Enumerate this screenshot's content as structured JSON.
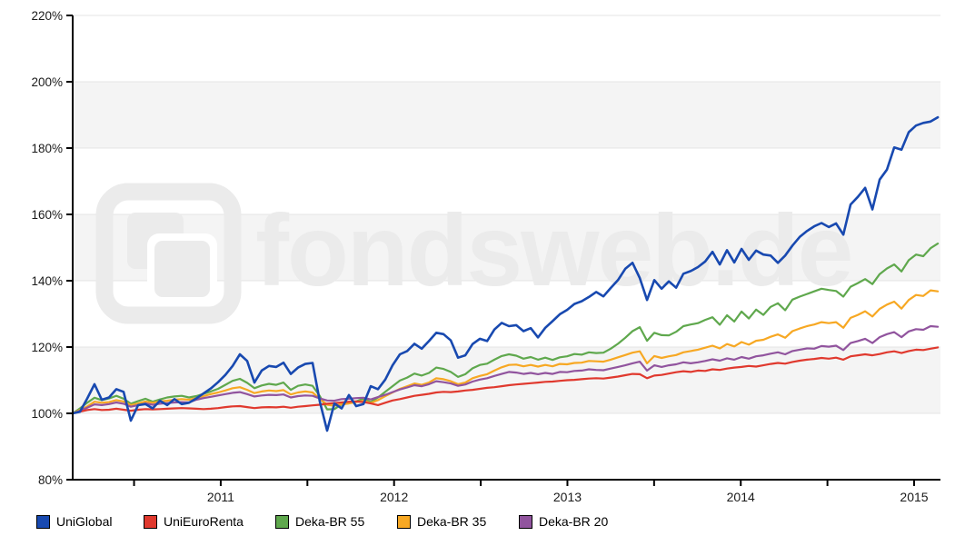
{
  "watermark": {
    "text": "fondsweb.de"
  },
  "style": {
    "background": "#ffffff",
    "band_color": "#f4f4f4",
    "grid_color": "#e4e4e4",
    "axis_color": "#000000",
    "label_color": "#1a1a1a",
    "watermark_color": "#ebebeb"
  },
  "chart_data": {
    "type": "line",
    "title": "",
    "xlabel": "",
    "ylabel": "",
    "y_axis": {
      "unit": "%",
      "min": 80,
      "max": 220,
      "ticks": [
        220,
        200,
        180,
        160,
        140,
        120,
        100,
        80
      ]
    },
    "x_axis": {
      "min": 2010.146,
      "max": 2015.152,
      "ticks": [
        2011,
        2012,
        2013,
        2014,
        2015
      ],
      "minor_ticks": [
        2010.5,
        2011.5,
        2012.5,
        2013.5,
        2014.5
      ]
    },
    "grid": true,
    "legend_position": "bottom",
    "sample_start_year": 2010.146,
    "sample_step_years": 0.041941,
    "series": [
      {
        "name": "UniGlobal",
        "color": "#1849b0",
        "values": [
          100,
          100.5,
          104.5,
          108.8,
          104.1,
          104.8,
          107.3,
          106.5,
          97.8,
          102.5,
          102.8,
          101.5,
          103.8,
          102.5,
          104.3,
          102.8,
          103.2,
          104.5,
          106,
          107.5,
          109.4,
          111.6,
          114.3,
          117.8,
          115.8,
          109.3,
          112.9,
          114.3,
          114,
          115.3,
          111.9,
          113.8,
          114.9,
          115.2,
          103.5,
          94.8,
          103,
          101.5,
          105.5,
          102.2,
          102.8,
          108.2,
          107.3,
          110.2,
          114.5,
          117.8,
          118.8,
          121,
          119.5,
          121.8,
          124.3,
          123.9,
          122,
          116.8,
          117.5,
          120.9,
          122.5,
          121.8,
          125.3,
          127.3,
          126.3,
          126.6,
          124.8,
          125.7,
          122.9,
          125.8,
          127.8,
          129.9,
          131.2,
          133,
          133.8,
          135.1,
          136.6,
          135.3,
          137.8,
          140.2,
          143.6,
          145.4,
          140.8,
          134.2,
          140.2,
          137.6,
          139.8,
          137.9,
          142.1,
          142.9,
          144.1,
          145.8,
          148.7,
          144.9,
          149.2,
          145.5,
          149.6,
          146.3,
          149.1,
          147.9,
          147.6,
          145.4,
          147.6,
          150.6,
          153.2,
          155,
          156.4,
          157.4,
          156.2,
          157.3,
          153.9,
          163,
          165.3,
          168,
          161.5,
          170.5,
          173.5,
          180.2,
          179.5,
          184.8,
          186.8,
          187.6,
          188,
          189.3
        ]
      },
      {
        "name": "UniEuroRenta",
        "color": "#e0392e",
        "values": [
          100,
          100.5,
          101,
          101.3,
          101,
          101.1,
          101.4,
          101.1,
          100.8,
          101.1,
          101.3,
          101.2,
          101.3,
          101.4,
          101.5,
          101.6,
          101.5,
          101.4,
          101.3,
          101.4,
          101.6,
          101.9,
          102.1,
          102.2,
          101.9,
          101.6,
          101.8,
          101.9,
          101.8,
          102,
          101.7,
          102,
          102.2,
          102.4,
          102.6,
          102.9,
          103.1,
          103.3,
          103.5,
          103.6,
          103.4,
          103,
          102.5,
          103.2,
          103.9,
          104.3,
          104.8,
          105.3,
          105.6,
          105.9,
          106.3,
          106.5,
          106.4,
          106.6,
          106.9,
          107.1,
          107.4,
          107.7,
          107.9,
          108.2,
          108.5,
          108.7,
          108.9,
          109.1,
          109.3,
          109.5,
          109.6,
          109.8,
          110,
          110.1,
          110.3,
          110.5,
          110.6,
          110.5,
          110.8,
          111.1,
          111.5,
          111.9,
          111.8,
          110.6,
          111.4,
          111.6,
          112,
          112.4,
          112.7,
          112.5,
          112.9,
          112.8,
          113.3,
          113.1,
          113.5,
          113.8,
          114,
          114.3,
          114.1,
          114.5,
          114.9,
          115.2,
          115,
          115.5,
          115.9,
          116.2,
          116.4,
          116.7,
          116.5,
          116.8,
          116.2,
          117.2,
          117.5,
          117.8,
          117.5,
          117.9,
          118.4,
          118.7,
          118.2,
          118.8,
          119.2,
          119.1,
          119.5,
          119.9
        ]
      },
      {
        "name": "Deka-BR 55",
        "color": "#5fa84d",
        "values": [
          100,
          101.5,
          103.2,
          104.7,
          104,
          104.5,
          105.3,
          104.4,
          102.9,
          103.7,
          104.4,
          103.5,
          104.2,
          104.8,
          105.1,
          105.3,
          104.8,
          105.2,
          105.9,
          106.6,
          107.4,
          108.6,
          109.8,
          110.4,
          109.2,
          107.6,
          108.4,
          108.9,
          108.6,
          109.3,
          107.1,
          108.3,
          108.7,
          108.3,
          105.2,
          101.2,
          101.3,
          102.7,
          103.1,
          103.6,
          104.5,
          103.4,
          104.8,
          106.5,
          108.2,
          109.9,
          110.8,
          112,
          111.4,
          112.2,
          113.8,
          113.4,
          112.5,
          111,
          111.8,
          113.6,
          114.6,
          115,
          116.2,
          117.3,
          117.8,
          117.4,
          116.5,
          117,
          116.2,
          116.8,
          116.1,
          116.9,
          117.2,
          117.9,
          117.7,
          118.4,
          118.2,
          118.3,
          119.5,
          121,
          122.8,
          124.8,
          126,
          121.9,
          124.3,
          123.6,
          123.5,
          124.6,
          126.3,
          126.8,
          127.2,
          128.2,
          129,
          126.7,
          129.6,
          127.7,
          130.7,
          128.6,
          131.3,
          129.7,
          132.1,
          133.2,
          131.1,
          134.3,
          135.2,
          136,
          136.8,
          137.6,
          137.2,
          136.9,
          135.2,
          138.2,
          139.3,
          140.5,
          139,
          142,
          143.7,
          144.9,
          142.8,
          146.2,
          147.9,
          147.4,
          149.8,
          151.2
        ]
      },
      {
        "name": "Deka-BR 35",
        "color": "#f7a823",
        "values": [
          100,
          101,
          102.1,
          103.5,
          103.2,
          103.4,
          104,
          103.6,
          102.5,
          103,
          103.6,
          103.2,
          103.6,
          103.8,
          104.1,
          104.3,
          104.1,
          104.6,
          105.2,
          105.8,
          106.3,
          106.9,
          107.6,
          107.9,
          107.1,
          106.1,
          106.6,
          106.9,
          106.7,
          107,
          105.7,
          106.3,
          106.6,
          106.3,
          104.4,
          102.6,
          102.3,
          102.7,
          103,
          103.4,
          103.8,
          103.1,
          104,
          105.2,
          106.3,
          107.4,
          108.2,
          109,
          108.6,
          109.3,
          110.6,
          110.3,
          109.7,
          108.8,
          109.3,
          110.6,
          111.3,
          111.8,
          112.9,
          113.9,
          114.6,
          114.7,
          114.2,
          114.6,
          114.1,
          114.6,
          114.2,
          114.9,
          114.8,
          115.2,
          115.3,
          115.8,
          115.7,
          115.6,
          116.2,
          116.9,
          117.6,
          118.3,
          118.7,
          115.1,
          117.3,
          116.7,
          117.2,
          117.6,
          118.4,
          118.8,
          119.2,
          119.8,
          120.4,
          119.6,
          120.9,
          120.2,
          121.5,
          120.7,
          121.9,
          122.2,
          123.1,
          123.8,
          122.8,
          124.8,
          125.6,
          126.3,
          126.8,
          127.5,
          127.2,
          127.5,
          125.8,
          128.8,
          129.7,
          130.8,
          129.2,
          131.5,
          132.8,
          133.7,
          131.6,
          134.2,
          135.7,
          135.4,
          137.1,
          136.8
        ]
      },
      {
        "name": "Deka-BR 20",
        "color": "#91549e",
        "values": [
          100,
          100.8,
          101.7,
          102.7,
          102.5,
          102.8,
          103.3,
          102.9,
          102,
          102.5,
          103,
          102.6,
          102.9,
          103.1,
          103.3,
          103.4,
          103.3,
          104.1,
          104.6,
          105,
          105.4,
          105.8,
          106.2,
          106.4,
          105.8,
          105.1,
          105.4,
          105.6,
          105.5,
          105.7,
          104.8,
          105.2,
          105.4,
          105.3,
          104.5,
          103.9,
          103.8,
          104.3,
          104.4,
          104.6,
          104.7,
          104.2,
          104.9,
          105.6,
          106.4,
          107.2,
          107.8,
          108.5,
          108.2,
          108.8,
          109.7,
          109.4,
          109,
          108.3,
          108.7,
          109.6,
          110.2,
          110.6,
          111.3,
          111.9,
          112.5,
          112.3,
          111.9,
          112.2,
          111.8,
          112.2,
          111.9,
          112.5,
          112.4,
          112.8,
          112.9,
          113.3,
          113.1,
          113,
          113.5,
          114,
          114.5,
          115.1,
          115.6,
          112.9,
          114.5,
          114,
          114.5,
          114.8,
          115.4,
          115.1,
          115.4,
          115.8,
          116.3,
          115.9,
          116.6,
          116.2,
          117,
          116.5,
          117.2,
          117.5,
          118,
          118.4,
          117.8,
          118.8,
          119.2,
          119.6,
          119.5,
          120.3,
          120.1,
          120.4,
          119.1,
          121.2,
          121.8,
          122.5,
          121.2,
          123,
          123.9,
          124.5,
          123,
          124.7,
          125.4,
          125.2,
          126.3,
          126.1
        ]
      }
    ]
  }
}
